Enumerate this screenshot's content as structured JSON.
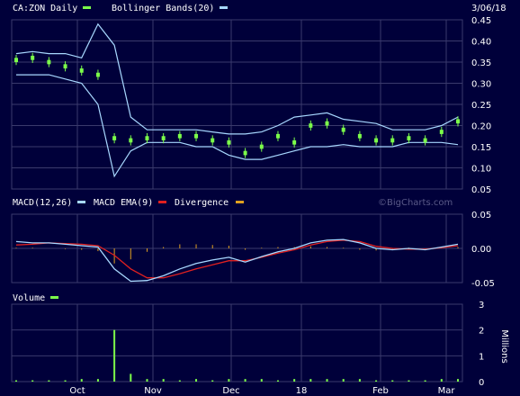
{
  "date": "3/06/18",
  "watermark": "©BigCharts.com",
  "colors": {
    "background": "#00003a",
    "grid": "#3a3a6c",
    "price": "#7cff4a",
    "bollinger": "#a8d8ff",
    "macd": "#a8d8ff",
    "macd_ema": "#e02020",
    "divergence": "#e0a020",
    "volume": "#7cff4a",
    "text": "#ffffff"
  },
  "icons": [
    "legend-swatch-icon"
  ],
  "x_labels": [
    "Oct",
    "Nov",
    "Dec",
    "18",
    "Feb",
    "Mar"
  ],
  "price_panel": {
    "symbol_label": "CA:ZON Daily",
    "bollinger_label": "Bollinger Bands(20)",
    "y_ticks": [
      "0.45",
      "0.40",
      "0.35",
      "0.30",
      "0.25",
      "0.20",
      "0.15",
      "0.10",
      "0.05"
    ]
  },
  "macd_panel": {
    "macd_label": "MACD(12,26)",
    "ema_label": "MACD EMA(9)",
    "divergence_label": "Divergence",
    "y_ticks": [
      "0.05",
      "0.00",
      "-0.05"
    ]
  },
  "volume_panel": {
    "label": "Volume",
    "y_ticks": [
      "3",
      "2",
      "1",
      "0"
    ],
    "unit_label": "Millions"
  },
  "chart_data": [
    {
      "type": "candlestick",
      "panel": "price",
      "ylim": [
        0.05,
        0.45
      ],
      "x": [
        "Sep 1",
        "Sep 8",
        "Sep 15",
        "Sep 22",
        "Sep 29",
        "Oct 6",
        "Oct 13",
        "Oct 20",
        "Oct 27",
        "Nov 3",
        "Nov 10",
        "Nov 17",
        "Nov 24",
        "Dec 1",
        "Dec 8",
        "Dec 15",
        "Dec 22",
        "Dec 29",
        "Jan 5",
        "Jan 12",
        "Jan 19",
        "Jan 26",
        "Feb 2",
        "Feb 9",
        "Feb 16",
        "Feb 23",
        "Mar 2",
        "Mar 6"
      ],
      "close": [
        0.355,
        0.36,
        0.35,
        0.34,
        0.33,
        0.32,
        0.17,
        0.165,
        0.17,
        0.17,
        0.175,
        0.175,
        0.165,
        0.16,
        0.135,
        0.15,
        0.175,
        0.16,
        0.2,
        0.205,
        0.19,
        0.175,
        0.165,
        0.165,
        0.17,
        0.165,
        0.185,
        0.21
      ],
      "bollinger_upper": [
        0.37,
        0.375,
        0.37,
        0.37,
        0.36,
        0.44,
        0.39,
        0.22,
        0.19,
        0.19,
        0.19,
        0.19,
        0.185,
        0.18,
        0.18,
        0.185,
        0.2,
        0.22,
        0.225,
        0.23,
        0.215,
        0.21,
        0.205,
        0.19,
        0.19,
        0.19,
        0.2,
        0.22
      ],
      "bollinger_lower": [
        0.32,
        0.32,
        0.32,
        0.31,
        0.3,
        0.25,
        0.08,
        0.14,
        0.16,
        0.16,
        0.16,
        0.15,
        0.15,
        0.13,
        0.12,
        0.12,
        0.13,
        0.14,
        0.15,
        0.15,
        0.155,
        0.15,
        0.15,
        0.15,
        0.16,
        0.16,
        0.16,
        0.155
      ]
    },
    {
      "type": "line",
      "panel": "macd",
      "ylim": [
        -0.05,
        0.05
      ],
      "x": [
        "Sep 1",
        "Sep 8",
        "Sep 15",
        "Sep 22",
        "Sep 29",
        "Oct 6",
        "Oct 13",
        "Oct 20",
        "Oct 27",
        "Nov 3",
        "Nov 10",
        "Nov 17",
        "Nov 24",
        "Dec 1",
        "Dec 8",
        "Dec 15",
        "Dec 22",
        "Dec 29",
        "Jan 5",
        "Jan 12",
        "Jan 19",
        "Jan 26",
        "Feb 2",
        "Feb 9",
        "Feb 16",
        "Feb 23",
        "Mar 2",
        "Mar 6"
      ],
      "series": [
        {
          "name": "MACD(12,26)",
          "values": [
            0.01,
            0.008,
            0.008,
            0.006,
            0.004,
            0.002,
            -0.03,
            -0.048,
            -0.047,
            -0.04,
            -0.03,
            -0.022,
            -0.017,
            -0.013,
            -0.02,
            -0.012,
            -0.005,
            0.0,
            0.008,
            0.012,
            0.013,
            0.008,
            0.0,
            -0.002,
            0.0,
            -0.002,
            0.002,
            0.006
          ]
        },
        {
          "name": "MACD EMA(9)",
          "values": [
            0.005,
            0.006,
            0.008,
            0.007,
            0.006,
            0.004,
            -0.01,
            -0.03,
            -0.043,
            -0.043,
            -0.037,
            -0.03,
            -0.024,
            -0.018,
            -0.018,
            -0.013,
            -0.007,
            -0.002,
            0.005,
            0.01,
            0.012,
            0.01,
            0.003,
            0.0,
            -0.001,
            -0.001,
            0.001,
            0.004
          ]
        },
        {
          "name": "Divergence",
          "values": [
            0.001,
            0.001,
            0.0,
            -0.001,
            -0.002,
            -0.004,
            -0.022,
            -0.016,
            -0.005,
            0.002,
            0.006,
            0.006,
            0.005,
            0.004,
            -0.002,
            0.001,
            0.002,
            0.002,
            0.003,
            0.002,
            0.001,
            -0.002,
            -0.003,
            -0.002,
            0.001,
            -0.001,
            0.001,
            0.002
          ]
        }
      ]
    },
    {
      "type": "bar",
      "panel": "volume",
      "ylim": [
        0,
        3
      ],
      "ylabel": "Millions",
      "x": [
        "Sep 1",
        "Sep 8",
        "Sep 15",
        "Sep 22",
        "Sep 29",
        "Oct 6",
        "Oct 13",
        "Oct 20",
        "Oct 27",
        "Nov 3",
        "Nov 10",
        "Nov 17",
        "Nov 24",
        "Dec 1",
        "Dec 8",
        "Dec 15",
        "Dec 22",
        "Dec 29",
        "Jan 5",
        "Jan 12",
        "Jan 19",
        "Jan 26",
        "Feb 2",
        "Feb 9",
        "Feb 16",
        "Feb 23",
        "Mar 2",
        "Mar 6"
      ],
      "values": [
        0.05,
        0.05,
        0.05,
        0.05,
        0.1,
        0.1,
        2.0,
        0.3,
        0.1,
        0.1,
        0.05,
        0.1,
        0.05,
        0.1,
        0.1,
        0.1,
        0.05,
        0.1,
        0.1,
        0.1,
        0.1,
        0.1,
        0.05,
        0.05,
        0.05,
        0.05,
        0.1,
        0.1
      ]
    }
  ]
}
